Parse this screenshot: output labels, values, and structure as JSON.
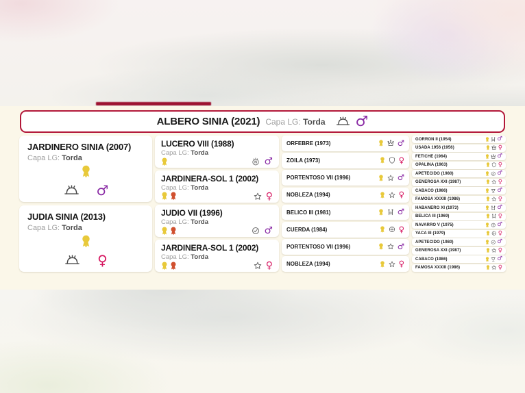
{
  "colors": {
    "accent_red": "#b21739",
    "male_symbol": "#8a2ba5",
    "female_symbol": "#d6155f",
    "rosette_gold": "#e8c93a",
    "rosette_red": "#d0502f",
    "band_background": "#fbf7e9",
    "red_bar": "#9d1230"
  },
  "subject": {
    "name": "ALBERO SINIA (2021)",
    "capa_label": "Capa LG:",
    "capa_value": "Torda",
    "icons": [
      "helmet-icon",
      "male-symbol"
    ],
    "sex": "male"
  },
  "pedigree": {
    "gen1": [
      {
        "name": "JARDINERO SINIA (2007)",
        "capa_label": "Capa LG:",
        "capa_value": "Torda",
        "awards": [
          "rosette-yellow"
        ],
        "helmet": true,
        "sex": "male"
      },
      {
        "name": "JUDIA SINIA (2013)",
        "capa_label": "Capa LG:",
        "capa_value": "Torda",
        "awards": [
          "rosette-yellow"
        ],
        "helmet": true,
        "sex": "female"
      }
    ],
    "gen2": [
      {
        "name": "LUCERO VIII (1988)",
        "capa_label": "Capa LG:",
        "capa_value": "Torda",
        "awards": [
          "rosette-yellow"
        ],
        "badge": "circle-n-icon",
        "sex": "male"
      },
      {
        "name": "JARDINERA-SOL 1 (2002)",
        "capa_label": "Capa LG:",
        "capa_value": "Torda",
        "awards": [
          "rosette-yellow",
          "rosette-red"
        ],
        "badge": "star-icon",
        "sex": "female"
      },
      {
        "name": "JUDIO VII (1996)",
        "capa_label": "Capa LG:",
        "capa_value": "Torda",
        "awards": [
          "rosette-yellow",
          "rosette-red"
        ],
        "badge": "circle-check-icon",
        "sex": "male"
      },
      {
        "name": "JARDINERA-SOL 1 (2002)",
        "capa_label": "Capa LG:",
        "capa_value": "Torda",
        "awards": [
          "rosette-yellow",
          "rosette-red"
        ],
        "badge": "star-icon",
        "sex": "female"
      }
    ],
    "gen3": [
      {
        "name": "ORFEBRE (1973)",
        "awards": [
          "rosette-yellow"
        ],
        "badge": "crown-icon",
        "sex": "male"
      },
      {
        "name": "ZOILA (1973)",
        "awards": [
          "rosette-yellow"
        ],
        "badge": "shield-icon",
        "sex": "female"
      },
      {
        "name": "PORTENTOSO VII (1996)",
        "awards": [
          "rosette-yellow"
        ],
        "badge": "star-icon",
        "sex": "male"
      },
      {
        "name": "NOBLEZA (1994)",
        "awards": [
          "rosette-yellow"
        ],
        "badge": "star-icon",
        "sex": "female"
      },
      {
        "name": "BELICO III (1981)",
        "awards": [
          "rosette-yellow"
        ],
        "badge": "obstacle-icon",
        "sex": "male"
      },
      {
        "name": "CUERDA (1984)",
        "awards": [
          "rosette-yellow"
        ],
        "badge": "wheel-icon",
        "sex": "female"
      },
      {
        "name": "PORTENTOSO VII (1996)",
        "awards": [
          "rosette-yellow"
        ],
        "badge": "star-icon",
        "sex": "male"
      },
      {
        "name": "NOBLEZA (1994)",
        "awards": [
          "rosette-yellow"
        ],
        "badge": "star-icon",
        "sex": "female"
      }
    ],
    "gen4": [
      {
        "name": "GORRON II (1954)",
        "awards": [
          "rosette-yellow"
        ],
        "badge": "obstacle-icon",
        "sex": "male"
      },
      {
        "name": "USADA 1956 (1956)",
        "awards": [
          "rosette-yellow"
        ],
        "badge": "crown-icon",
        "sex": "female"
      },
      {
        "name": "FETICHE (1964)",
        "awards": [
          "rosette-yellow"
        ],
        "badge": "crown-icon",
        "sex": "male"
      },
      {
        "name": "OPALINA (1963)",
        "awards": [
          "rosette-yellow"
        ],
        "badge": "shield-icon",
        "sex": "female"
      },
      {
        "name": "APETECIDO (1980)",
        "awards": [
          "rosette-yellow"
        ],
        "badge": "circle-check-icon",
        "sex": "male"
      },
      {
        "name": "GENEROSA XXI (1987)",
        "awards": [
          "rosette-yellow"
        ],
        "badge": "star-icon",
        "sex": "female"
      },
      {
        "name": "CABACO (1986)",
        "awards": [
          "rosette-yellow"
        ],
        "badge": "trophy-icon",
        "sex": "male"
      },
      {
        "name": "FAMOSA XXXIII (1986)",
        "awards": [
          "rosette-yellow"
        ],
        "badge": "star-icon",
        "sex": "female"
      },
      {
        "name": "HABANERO XI (1973)",
        "awards": [
          "rosette-yellow"
        ],
        "badge": "obstacle-icon",
        "sex": "male"
      },
      {
        "name": "BELICA III (1969)",
        "awards": [
          "rosette-yellow"
        ],
        "badge": "obstacle-icon",
        "sex": "female"
      },
      {
        "name": "NAVARRO V (1975)",
        "awards": [
          "rosette-yellow"
        ],
        "badge": "wheel-icon",
        "sex": "male"
      },
      {
        "name": "YACA III (1979)",
        "awards": [
          "rosette-yellow"
        ],
        "badge": "wheel-icon",
        "sex": "female"
      },
      {
        "name": "APETECIDO (1980)",
        "awards": [
          "rosette-yellow"
        ],
        "badge": "circle-check-icon",
        "sex": "male"
      },
      {
        "name": "GENEROSA XXI (1987)",
        "awards": [
          "rosette-yellow"
        ],
        "badge": "star-icon",
        "sex": "female"
      },
      {
        "name": "CABACO (1986)",
        "awards": [
          "rosette-yellow"
        ],
        "badge": "trophy-icon",
        "sex": "male"
      },
      {
        "name": "FAMOSA XXXIII (1986)",
        "awards": [
          "rosette-yellow"
        ],
        "badge": "star-icon",
        "sex": "female"
      }
    ]
  }
}
